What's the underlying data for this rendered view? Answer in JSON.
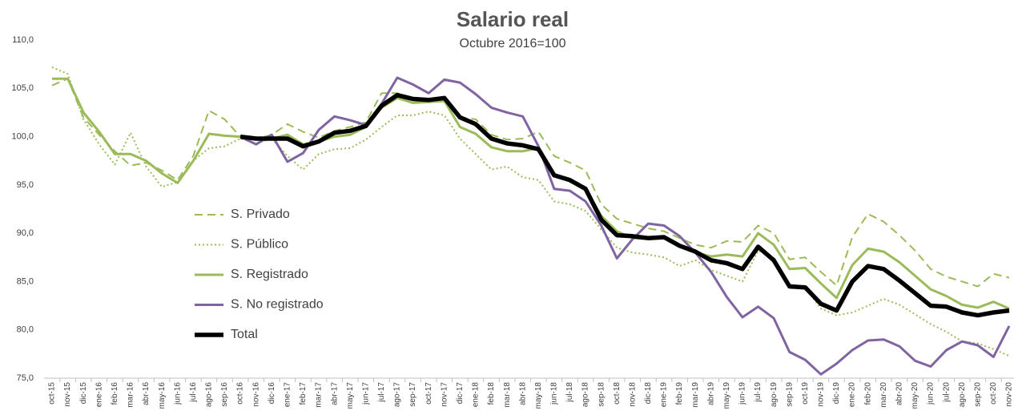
{
  "chart_data": {
    "type": "line",
    "title": "Salario real",
    "subtitle": "Octubre 2016=100",
    "categories": [
      "oct-15",
      "nov-15",
      "dic-15",
      "ene-16",
      "feb-16",
      "mar-16",
      "abr-16",
      "may-16",
      "jun-16",
      "jul-16",
      "ago-16",
      "sep-16",
      "oct-16",
      "nov-16",
      "dic-16",
      "ene-17",
      "feb-17",
      "mar-17",
      "abr-17",
      "may-17",
      "jun-17",
      "jul-17",
      "ago-17",
      "sep-17",
      "oct-17",
      "nov-17",
      "dic-17",
      "ene-18",
      "feb-18",
      "mar-18",
      "abr-18",
      "may-18",
      "jun-18",
      "jul-18",
      "ago-18",
      "sep-18",
      "oct-18",
      "nov-18",
      "dic-18",
      "ene-19",
      "feb-19",
      "mar-19",
      "abr-19",
      "may-19",
      "jun-19",
      "jul-19",
      "ago-19",
      "sep-19",
      "oct-19",
      "nov-19",
      "dic-19",
      "ene-20",
      "feb-20",
      "mar-20",
      "abr-20",
      "may-20",
      "jun-20",
      "jul-20",
      "ago-20",
      "sep-20",
      "oct-20",
      "nov-20"
    ],
    "series": [
      {
        "name": "S. Privado",
        "color": "#9bbb59",
        "dash": "dashed",
        "values": [
          105.3,
          106,
          102,
          100.2,
          98.5,
          97,
          97.3,
          96.5,
          95.5,
          98,
          102.7,
          101.8,
          100,
          99.8,
          100.2,
          101.3,
          100.5,
          99.9,
          100.6,
          101,
          101.5,
          104.5,
          104.5,
          104,
          103.9,
          104,
          102,
          101.8,
          100.2,
          99.7,
          99.8,
          100.5,
          98,
          97.3,
          96.5,
          93,
          91.5,
          91,
          90.5,
          90.2,
          89.5,
          88.8,
          88.5,
          89.2,
          89.1,
          90.8,
          90,
          87.3,
          87.5,
          86,
          84.6,
          89.6,
          92,
          91.2,
          89.8,
          88.2,
          86.3,
          85.5,
          85,
          84.5,
          85.8,
          85.4
        ]
      },
      {
        "name": "S. Público",
        "color": "#9bbb59",
        "dash": "dotted",
        "values": [
          107.2,
          106.5,
          101.8,
          99.2,
          97.1,
          100.4,
          96.9,
          94.8,
          95.3,
          97.5,
          98.8,
          99,
          99.8,
          99.3,
          99.8,
          98,
          96.6,
          98.2,
          98.7,
          98.8,
          99.7,
          101,
          102.2,
          102.2,
          102.6,
          102.2,
          99.8,
          98.2,
          96.6,
          96.9,
          95.8,
          95.5,
          93.3,
          93,
          92.3,
          90.4,
          88.5,
          88,
          87.8,
          87.5,
          86.6,
          87.2,
          86.2,
          85.6,
          85,
          88.2,
          87.5,
          84.3,
          84.4,
          82.2,
          81.5,
          81.8,
          82.5,
          83.2,
          82.6,
          81.6,
          80.6,
          79.8,
          78.8,
          78.6,
          78,
          77.3
        ]
      },
      {
        "name": "S. Registrado",
        "color": "#9bbb59",
        "dash": "solid",
        "values": [
          106,
          106,
          102.5,
          100.5,
          98.2,
          98.2,
          97.5,
          96.2,
          95.2,
          97.5,
          100.3,
          100.1,
          100,
          99.8,
          99.8,
          100.2,
          99.2,
          99.5,
          100,
          100.2,
          101,
          103,
          104,
          103.5,
          103.6,
          103.7,
          101,
          100.3,
          98.9,
          98.5,
          98.5,
          98.8,
          96.1,
          95.6,
          94.6,
          91.8,
          90.2,
          89.5,
          89.4,
          89.5,
          88.8,
          88,
          87.6,
          87.8,
          87.6,
          90,
          88.8,
          86.3,
          86.4,
          84.8,
          83.3,
          86.7,
          88.4,
          88.1,
          87,
          85.6,
          84.2,
          83.5,
          82.6,
          82.3,
          82.9,
          82.2
        ]
      },
      {
        "name": "S. No registrado",
        "color": "#8064a2",
        "dash": "solid",
        "values": [
          null,
          null,
          null,
          null,
          null,
          null,
          null,
          null,
          null,
          null,
          null,
          null,
          100,
          99.2,
          100.2,
          97.4,
          98.3,
          100.7,
          102.1,
          101.7,
          101.2,
          103.4,
          106.1,
          105.4,
          104.5,
          105.9,
          105.6,
          104.4,
          103,
          102.5,
          102.1,
          99,
          94.6,
          94.4,
          93.3,
          90.8,
          87.4,
          89.4,
          91,
          90.8,
          89.7,
          88,
          86,
          83.4,
          81.3,
          82.4,
          81.2,
          77.7,
          76.9,
          75.4,
          76.5,
          77.9,
          78.9,
          79,
          78.3,
          76.8,
          76.2,
          77.9,
          78.8,
          78.4,
          77.2,
          80.4
        ]
      },
      {
        "name": "Total",
        "color": "#000000",
        "dash": "bold",
        "values": [
          null,
          null,
          null,
          null,
          null,
          null,
          null,
          null,
          null,
          null,
          null,
          null,
          100,
          99.8,
          99.8,
          99.8,
          99,
          99.5,
          100.4,
          100.6,
          101.1,
          103.2,
          104.3,
          103.9,
          103.8,
          104,
          102,
          101.3,
          99.8,
          99.3,
          99.1,
          98.7,
          96,
          95.5,
          94.6,
          91.4,
          89.8,
          89.7,
          89.5,
          89.6,
          88.7,
          88.1,
          87.2,
          86.9,
          86.3,
          88.6,
          87.2,
          84.5,
          84.4,
          82.7,
          82,
          85,
          86.6,
          86.3,
          85.1,
          83.8,
          82.5,
          82.4,
          81.8,
          81.5,
          81.8,
          82.0
        ]
      }
    ],
    "ylim": [
      75,
      110
    ],
    "yticks": [
      {
        "value": 75,
        "label": "75,0"
      },
      {
        "value": 80,
        "label": "80,0"
      },
      {
        "value": 85,
        "label": "85,0"
      },
      {
        "value": 90,
        "label": "90,0"
      },
      {
        "value": 95,
        "label": "95,0"
      },
      {
        "value": 100,
        "label": "100,0"
      },
      {
        "value": 105,
        "label": "105,0"
      },
      {
        "value": 110,
        "label": "110,0"
      }
    ],
    "grid": false,
    "legend": "left"
  }
}
